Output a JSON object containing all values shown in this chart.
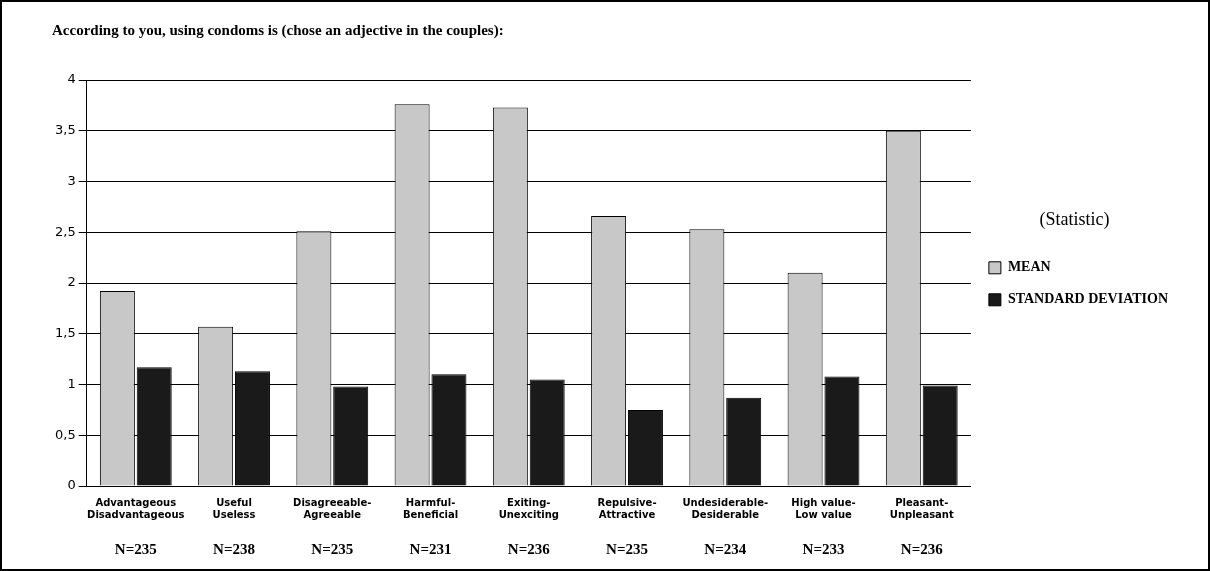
{
  "chart_data": {
    "type": "bar",
    "title": "According to you, using condoms is (chose an adjective in the couples):",
    "categories": [
      "Advantageous\nDisadvantageous",
      "Useful\nUseless",
      "Disagreeable-\nAgreeable",
      "Harmful-\nBeneficial",
      "Exiting-\nUnexciting",
      "Repulsive-\nAttractive",
      "Undesiderable-\nDesiderable",
      "High value-\nLow value",
      "Pleasant-\nUnpleasant"
    ],
    "series": [
      {
        "name": "MEAN",
        "color": "#c8c8c8",
        "values": [
          1.92,
          1.57,
          2.51,
          3.76,
          3.73,
          2.66,
          2.53,
          2.1,
          3.5
        ]
      },
      {
        "name": "STANDARD DEVIATION",
        "color": "#1a1a1a",
        "values": [
          1.17,
          1.13,
          0.98,
          1.1,
          1.05,
          0.75,
          0.87,
          1.08,
          0.99
        ]
      }
    ],
    "ylim": [
      0,
      4
    ],
    "yticks": [
      0,
      {
        "value": 0.5,
        "label": "0,5"
      },
      1,
      {
        "value": 1.5,
        "label": "1,5"
      },
      2,
      {
        "value": 2.5,
        "label": "2,5"
      },
      3,
      {
        "value": 3.5,
        "label": "3,5"
      },
      4
    ],
    "grid": "y",
    "legend": "right",
    "legend_title": "(Statistic)",
    "annotations": [
      "N=235",
      "N=238",
      "N=235",
      "N=231",
      "N=236",
      "N=235",
      "N=234",
      "N=233",
      "N=236"
    ]
  }
}
